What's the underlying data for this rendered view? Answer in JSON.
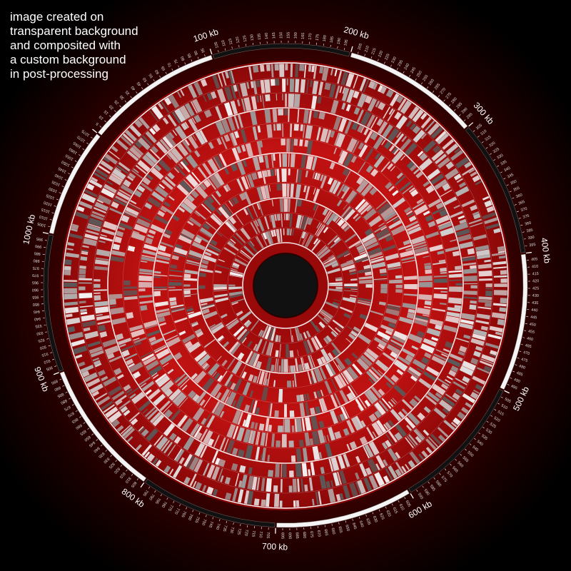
{
  "note": {
    "lines": [
      "image created on",
      "transparent background",
      "and composited with",
      "a custom background",
      "in post-processing"
    ]
  },
  "diagram": {
    "type": "circular genome map",
    "genome_length_kb": 1080,
    "major_tick_step_kb": 100,
    "minor_tick_step_kb": 5,
    "major_labels": [
      {
        "kb": 0,
        "text": ""
      },
      {
        "kb": 100,
        "text": "100 kb"
      },
      {
        "kb": 200,
        "text": "200 kb"
      },
      {
        "kb": 300,
        "text": "300 kb"
      },
      {
        "kb": 400,
        "text": "400 kb"
      },
      {
        "kb": 500,
        "text": "500 kb"
      },
      {
        "kb": 600,
        "text": "600 kb"
      },
      {
        "kb": 700,
        "text": "700 kb"
      },
      {
        "kb": 800,
        "text": "800 kb"
      },
      {
        "kb": 900,
        "text": "900 kb"
      },
      {
        "kb": 1000,
        "text": "1000 kb"
      }
    ],
    "track_count": 12,
    "colors": {
      "background_inner": "#7a0000",
      "background_outer": "#000000",
      "track_base": "#b50d0d",
      "feature_light": "#f2f2f2",
      "feature_mid": "#b4b4b4",
      "feature_dark": "#5a5a5a",
      "ideogram_black": "#111111",
      "ideogram_white": "#f4f4f4",
      "center_hole": "#111111"
    }
  }
}
